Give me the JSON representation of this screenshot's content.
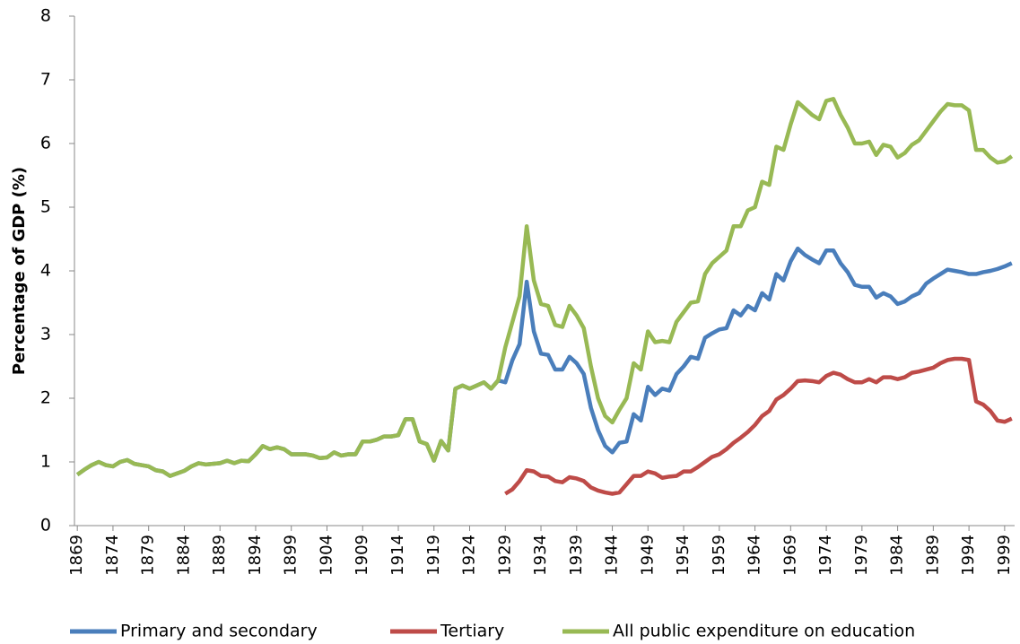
{
  "chart_data": {
    "type": "line",
    "y_label": "Percentage of GDP (%)",
    "x": [
      1869,
      1870,
      1871,
      1872,
      1873,
      1874,
      1875,
      1876,
      1877,
      1878,
      1879,
      1880,
      1881,
      1882,
      1883,
      1884,
      1885,
      1886,
      1887,
      1888,
      1889,
      1890,
      1891,
      1892,
      1893,
      1894,
      1895,
      1896,
      1897,
      1898,
      1899,
      1900,
      1901,
      1902,
      1903,
      1904,
      1905,
      1906,
      1907,
      1908,
      1909,
      1910,
      1911,
      1912,
      1913,
      1914,
      1915,
      1916,
      1917,
      1918,
      1919,
      1920,
      1921,
      1922,
      1923,
      1924,
      1925,
      1926,
      1927,
      1928,
      1929,
      1930,
      1931,
      1932,
      1933,
      1934,
      1935,
      1936,
      1937,
      1938,
      1939,
      1940,
      1941,
      1942,
      1943,
      1944,
      1945,
      1946,
      1947,
      1948,
      1949,
      1950,
      1951,
      1952,
      1953,
      1954,
      1955,
      1956,
      1957,
      1958,
      1959,
      1960,
      1961,
      1962,
      1963,
      1964,
      1965,
      1966,
      1967,
      1968,
      1969,
      1970,
      1971,
      1972,
      1973,
      1974,
      1975,
      1976,
      1977,
      1978,
      1979,
      1980,
      1981,
      1982,
      1983,
      1984,
      1985,
      1986,
      1987,
      1988,
      1989,
      1990,
      1991,
      1992,
      1993,
      1994,
      1995,
      1996,
      1997,
      1998,
      1999,
      2000
    ],
    "series": [
      {
        "name": "Primary and secondary",
        "color": "#4a7ebb",
        "values": [
          0.8,
          0.88,
          0.95,
          1.0,
          0.95,
          0.93,
          1.0,
          1.03,
          0.97,
          0.95,
          0.93,
          0.87,
          0.85,
          0.78,
          0.82,
          0.86,
          0.93,
          0.98,
          0.96,
          0.97,
          0.98,
          1.02,
          0.98,
          1.02,
          1.01,
          1.12,
          1.25,
          1.2,
          1.23,
          1.2,
          1.12,
          1.12,
          1.12,
          1.1,
          1.06,
          1.07,
          1.15,
          1.1,
          1.12,
          1.12,
          1.32,
          1.32,
          1.35,
          1.4,
          1.4,
          1.42,
          1.67,
          1.67,
          1.32,
          1.28,
          1.02,
          1.33,
          1.18,
          2.15,
          2.2,
          2.15,
          2.2,
          2.25,
          2.15,
          2.28,
          2.25,
          2.6,
          2.85,
          3.83,
          3.05,
          2.7,
          2.68,
          2.45,
          2.45,
          2.65,
          2.55,
          2.38,
          1.85,
          1.5,
          1.25,
          1.15,
          1.3,
          1.32,
          1.75,
          1.65,
          2.18,
          2.05,
          2.15,
          2.12,
          2.38,
          2.5,
          2.65,
          2.62,
          2.95,
          3.02,
          3.08,
          3.1,
          3.38,
          3.3,
          3.45,
          3.38,
          3.65,
          3.55,
          3.95,
          3.85,
          4.15,
          4.35,
          4.25,
          4.18,
          4.12,
          4.32,
          4.32,
          4.12,
          3.98,
          3.78,
          3.75,
          3.75,
          3.58,
          3.65,
          3.6,
          3.48,
          3.52,
          3.6,
          3.65,
          3.8,
          3.88,
          3.95,
          4.02,
          4.0,
          3.98,
          3.95,
          3.95,
          3.98,
          4.0,
          4.03,
          4.07,
          4.12
        ]
      },
      {
        "name": "Tertiary",
        "color": "#be4b48",
        "values": [
          null,
          null,
          null,
          null,
          null,
          null,
          null,
          null,
          null,
          null,
          null,
          null,
          null,
          null,
          null,
          null,
          null,
          null,
          null,
          null,
          null,
          null,
          null,
          null,
          null,
          null,
          null,
          null,
          null,
          null,
          null,
          null,
          null,
          null,
          null,
          null,
          null,
          null,
          null,
          null,
          null,
          null,
          null,
          null,
          null,
          null,
          null,
          null,
          null,
          null,
          null,
          null,
          null,
          null,
          null,
          null,
          null,
          null,
          null,
          null,
          0.5,
          0.57,
          0.7,
          0.87,
          0.85,
          0.78,
          0.77,
          0.7,
          0.68,
          0.76,
          0.74,
          0.7,
          0.6,
          0.55,
          0.52,
          0.5,
          0.52,
          0.65,
          0.78,
          0.78,
          0.85,
          0.82,
          0.75,
          0.77,
          0.78,
          0.85,
          0.85,
          0.92,
          1.0,
          1.08,
          1.12,
          1.2,
          1.3,
          1.38,
          1.47,
          1.58,
          1.72,
          1.8,
          1.98,
          2.05,
          2.15,
          2.27,
          2.28,
          2.27,
          2.25,
          2.35,
          2.4,
          2.37,
          2.3,
          2.25,
          2.25,
          2.3,
          2.25,
          2.33,
          2.33,
          2.3,
          2.33,
          2.4,
          2.42,
          2.45,
          2.48,
          2.55,
          2.6,
          2.62,
          2.62,
          2.6,
          1.95,
          1.9,
          1.8,
          1.65,
          1.63,
          1.68
        ]
      },
      {
        "name": "All public expenditure on education",
        "color": "#98b954",
        "values": [
          0.8,
          0.88,
          0.95,
          1.0,
          0.95,
          0.93,
          1.0,
          1.03,
          0.97,
          0.95,
          0.93,
          0.87,
          0.85,
          0.78,
          0.82,
          0.86,
          0.93,
          0.98,
          0.96,
          0.97,
          0.98,
          1.02,
          0.98,
          1.02,
          1.01,
          1.12,
          1.25,
          1.2,
          1.23,
          1.2,
          1.12,
          1.12,
          1.12,
          1.1,
          1.06,
          1.07,
          1.15,
          1.1,
          1.12,
          1.12,
          1.32,
          1.32,
          1.35,
          1.4,
          1.4,
          1.42,
          1.67,
          1.67,
          1.32,
          1.28,
          1.02,
          1.33,
          1.18,
          2.15,
          2.2,
          2.15,
          2.2,
          2.25,
          2.15,
          2.28,
          2.8,
          3.2,
          3.6,
          4.7,
          3.85,
          3.48,
          3.45,
          3.15,
          3.12,
          3.45,
          3.3,
          3.1,
          2.5,
          2.0,
          1.72,
          1.62,
          1.82,
          2.0,
          2.55,
          2.45,
          3.05,
          2.88,
          2.9,
          2.88,
          3.2,
          3.35,
          3.5,
          3.52,
          3.95,
          4.12,
          4.22,
          4.32,
          4.7,
          4.7,
          4.95,
          5.0,
          5.4,
          5.35,
          5.95,
          5.9,
          6.3,
          6.65,
          6.55,
          6.45,
          6.38,
          6.67,
          6.7,
          6.45,
          6.25,
          6.0,
          6.0,
          6.03,
          5.82,
          5.98,
          5.95,
          5.78,
          5.85,
          5.98,
          6.05,
          6.2,
          6.35,
          6.5,
          6.62,
          6.6,
          6.6,
          6.52,
          5.9,
          5.9,
          5.78,
          5.7,
          5.72,
          5.8
        ]
      }
    ],
    "xlim": [
      1868.6,
      2000.4
    ],
    "xticks": [
      1869,
      1874,
      1879,
      1884,
      1889,
      1894,
      1899,
      1904,
      1909,
      1914,
      1919,
      1924,
      1929,
      1934,
      1939,
      1944,
      1949,
      1954,
      1959,
      1964,
      1969,
      1974,
      1979,
      1984,
      1989,
      1994,
      1999
    ],
    "ylim": [
      0,
      8
    ],
    "yticks": [
      0,
      1,
      2,
      3,
      4,
      5,
      6,
      7,
      8
    ],
    "legend": "bottom"
  }
}
